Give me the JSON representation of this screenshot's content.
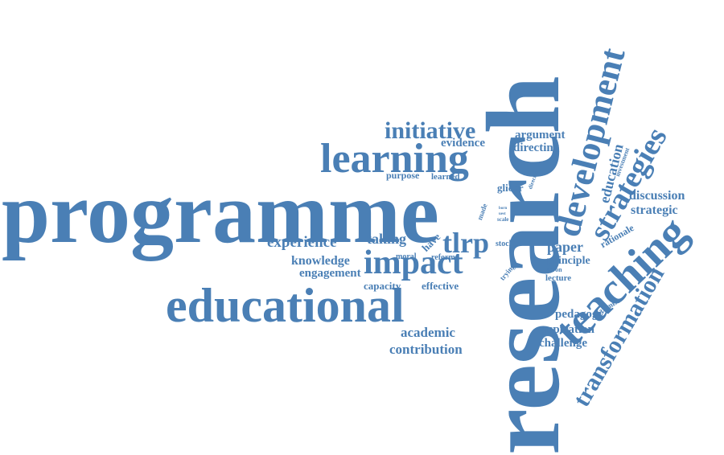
{
  "colors": {
    "word": "#4a7fb5",
    "background": "#ffffff"
  },
  "words": {
    "research": "research",
    "programme": "programme",
    "educational": "educational",
    "development": "development",
    "teaching": "teaching",
    "learning": "learning",
    "impact": "impact",
    "strategies": "strategies",
    "transformation": "transformation",
    "initiative": "initiative",
    "tlrp": "tlrp",
    "experience": "experience",
    "knowledge": "knowledge",
    "engagement": "engagement",
    "taking": "taking",
    "academic": "academic",
    "contribution": "contribution",
    "discussion": "discussion",
    "strategic": "strategic",
    "education": "education",
    "paper": "paper",
    "principle": "principle",
    "lecture": "lecture",
    "pedagogy": "pedagogy",
    "aspiration": "aspiration",
    "challenge": "challenge",
    "argument": "argument",
    "evidence": "evidence",
    "directing": "directing",
    "purpose": "purpose",
    "learned": "learned",
    "glider": "glider",
    "made": "made",
    "have": "have",
    "moral": "moral",
    "reform": "reform",
    "capacity": "capacity",
    "effective": "effective",
    "stock": "stock",
    "trying": "trying",
    "seron": "seron",
    "rationale": "rationale",
    "maximise": "maximise",
    "investment": "investment",
    "director": "director",
    "scale": "scale",
    "born": "born",
    "uest": "uest"
  }
}
